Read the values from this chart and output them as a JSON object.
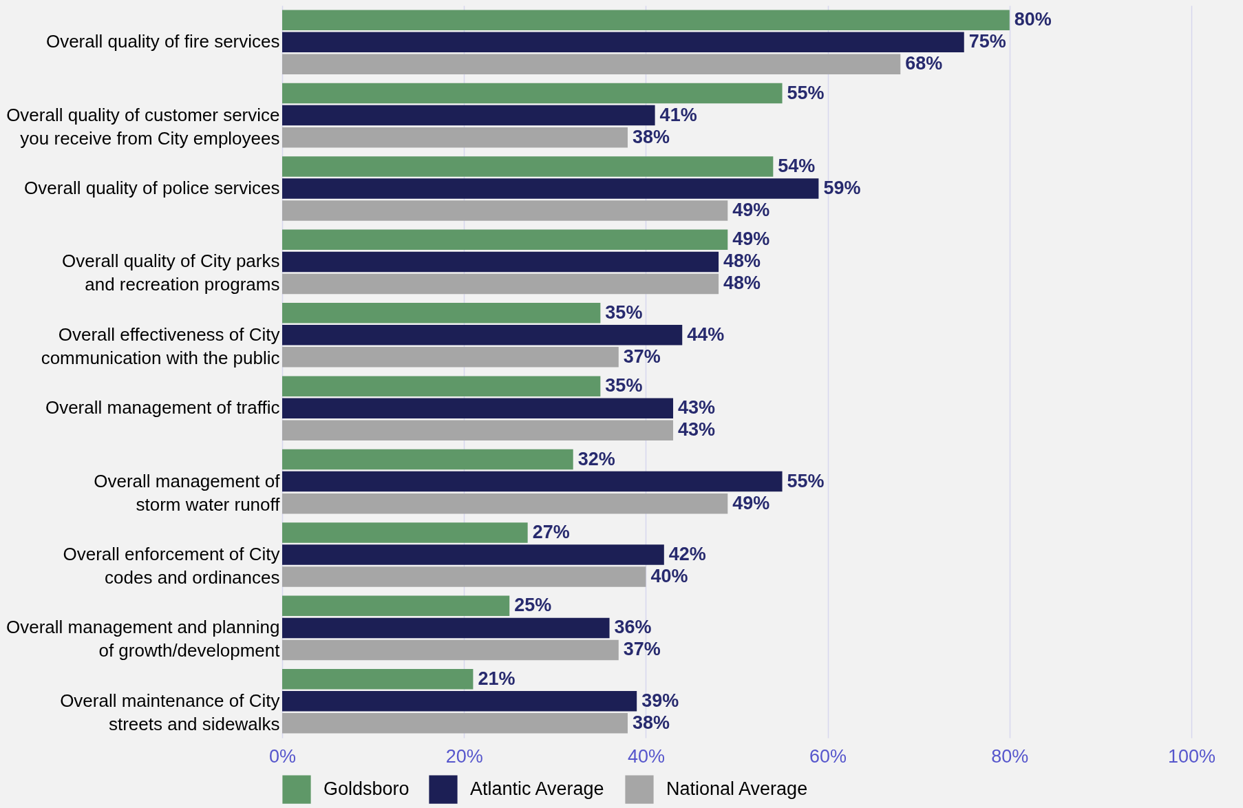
{
  "chart_data": {
    "type": "bar",
    "orientation": "horizontal",
    "categories": [
      "Overall quality of fire services",
      "Overall quality of customer service\nyou receive from City employees",
      "Overall quality of police services",
      "Overall quality of City parks\nand recreation programs",
      "Overall effectiveness of City\ncommunication with the public",
      "Overall management of traffic",
      "Overall management of\nstorm water runoff",
      "Overall enforcement of City\ncodes and ordinances",
      "Overall management and planning\nof growth/development",
      "Overall maintenance of City\nstreets and sidewalks"
    ],
    "series": [
      {
        "name": "Goldsboro",
        "color": "#5f9868",
        "values": [
          80,
          55,
          54,
          49,
          35,
          35,
          32,
          27,
          25,
          21
        ],
        "value_labels": [
          "80%",
          "55%",
          "54%",
          "49%",
          "35%",
          "35%",
          "32%",
          "27%",
          "25%",
          "21%"
        ]
      },
      {
        "name": "Atlantic Average",
        "color": "#1c1f55",
        "values": [
          75,
          41,
          59,
          48,
          44,
          43,
          55,
          42,
          36,
          39
        ],
        "value_labels": [
          "75%",
          "41%",
          "59%",
          "48%",
          "44%",
          "43%",
          "55%",
          "42%",
          "36%",
          "39%"
        ]
      },
      {
        "name": "National Average",
        "color": "#a6a6a6",
        "values": [
          68,
          38,
          49,
          48,
          37,
          43,
          49,
          40,
          37,
          38
        ],
        "value_labels": [
          "68%",
          "38%",
          "49%",
          "48%",
          "37%",
          "43%",
          "49%",
          "40%",
          "37%",
          "38%"
        ]
      }
    ],
    "xlim": [
      0,
      100
    ],
    "xticks": [
      {
        "value": 0,
        "label": "0%"
      },
      {
        "value": 20,
        "label": "20%"
      },
      {
        "value": 40,
        "label": "40%"
      },
      {
        "value": 60,
        "label": "60%"
      },
      {
        "value": 80,
        "label": "80%"
      },
      {
        "value": 100,
        "label": "100%"
      }
    ],
    "grid": "x",
    "legend": "bottom"
  }
}
